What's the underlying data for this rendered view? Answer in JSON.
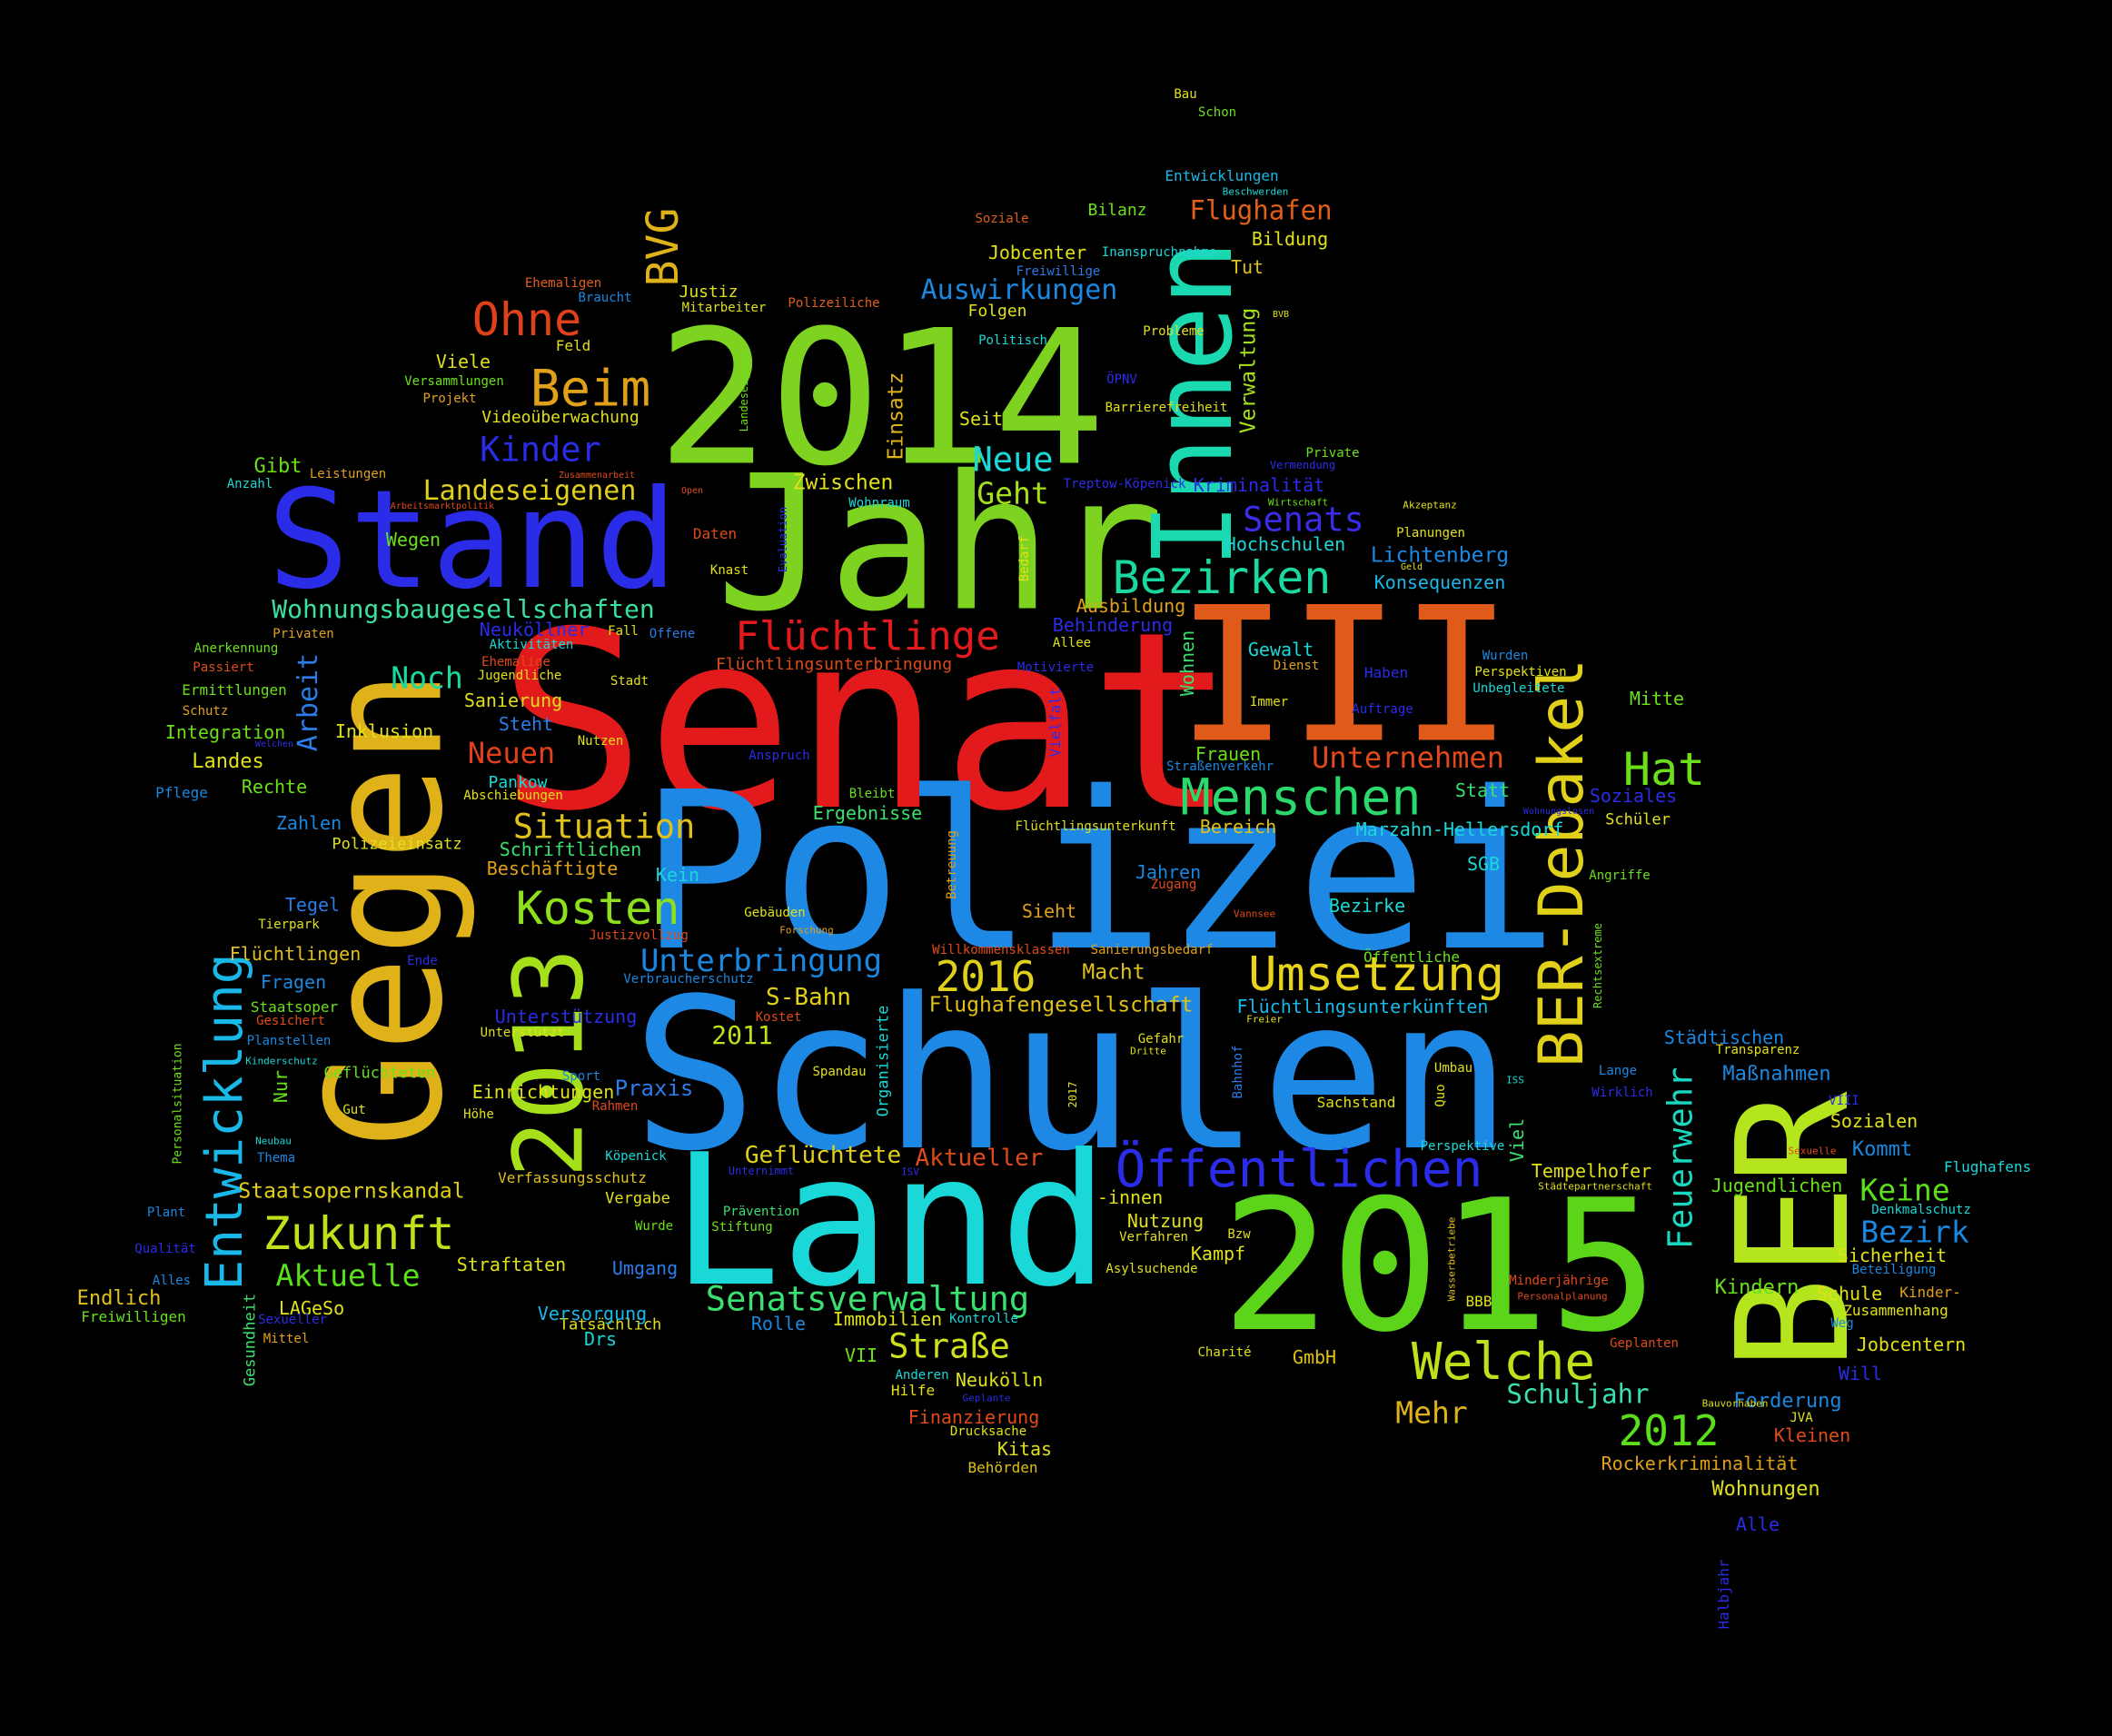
{
  "words": [
    {
      "text": "Senat",
      "color": "#e31a1c"
    },
    {
      "text": "Polizei",
      "color": "#1e88e5"
    },
    {
      "text": "Schulen",
      "color": "#1e88e5"
    },
    {
      "text": "Jahr",
      "color": "#7ed321"
    },
    {
      "text": "2014",
      "color": "#7ed321"
    },
    {
      "text": "2015",
      "color": "#5bd41a"
    },
    {
      "text": "Land",
      "color": "#1ad8d8"
    },
    {
      "text": "III",
      "color": "#e05a1a"
    },
    {
      "text": "Stand",
      "color": "#2b2ce8"
    },
    {
      "text": "Gegen",
      "color": "#e0b21a"
    },
    {
      "text": "BER",
      "color": "#b5e61d"
    },
    {
      "text": "Innen",
      "color": "#1ad8b0"
    },
    {
      "text": "2013",
      "color": "#a6e01a"
    },
    {
      "text": "BER-Debakel",
      "color": "#e0d01a"
    },
    {
      "text": "Entwicklung",
      "color": "#1ab8e8"
    },
    {
      "text": "Öffentlichen",
      "color": "#2b2ce8"
    },
    {
      "text": "Umsetzung",
      "color": "#e8d41a"
    },
    {
      "text": "Menschen",
      "color": "#2ad86b"
    },
    {
      "text": "Kosten",
      "color": "#8de01a"
    },
    {
      "text": "Zukunft",
      "color": "#c2e01a"
    },
    {
      "text": "Bezirken",
      "color": "#1ad8a0"
    },
    {
      "text": "Welche",
      "color": "#c2e01a"
    },
    {
      "text": "Flüchtlinge",
      "color": "#e31a1c"
    },
    {
      "text": "Ohne",
      "color": "#e0401a"
    },
    {
      "text": "Beim",
      "color": "#e0a01a"
    },
    {
      "text": "Hat",
      "color": "#6be01a"
    },
    {
      "text": "Senatsverwaltung",
      "color": "#3ae070"
    },
    {
      "text": "Situation",
      "color": "#e0c01a"
    },
    {
      "text": "Unterbringung",
      "color": "#1a88e0"
    },
    {
      "text": "2016",
      "color": "#e0d01a"
    },
    {
      "text": "2012",
      "color": "#5ae01a"
    },
    {
      "text": "Straße",
      "color": "#d0e01a"
    },
    {
      "text": "Feuerwehr",
      "color": "#1ad8c0"
    },
    {
      "text": "Kinder",
      "color": "#2b2ce8"
    },
    {
      "text": "Neue",
      "color": "#1ad8d8"
    },
    {
      "text": "Geht",
      "color": "#a6e01a"
    },
    {
      "text": "Senats",
      "color": "#3a2ce8"
    },
    {
      "text": "Unternehmen",
      "color": "#e04a1a"
    },
    {
      "text": "Aktuelle",
      "color": "#5ae01a"
    },
    {
      "text": "Noch",
      "color": "#1ad8a0"
    },
    {
      "text": "Neuen",
      "color": "#e0401a"
    },
    {
      "text": "Flughafen",
      "color": "#e0601a"
    },
    {
      "text": "Auswirkungen",
      "color": "#1a88e0"
    },
    {
      "text": "BVG",
      "color": "#e0b21a"
    },
    {
      "text": "Landeseigenen",
      "color": "#e0d01a"
    },
    {
      "text": "Wohnungsbaugesellschaften",
      "color": "#3ae0a0"
    },
    {
      "text": "Arbeit",
      "color": "#2b7ce8"
    },
    {
      "text": "Keine",
      "color": "#5ae01a"
    },
    {
      "text": "Bezirk",
      "color": "#1a88e0"
    },
    {
      "text": "Schuljahr",
      "color": "#3ae0b0"
    },
    {
      "text": "Mehr",
      "color": "#e0b21a"
    },
    {
      "text": "Geflüchtete",
      "color": "#e0d01a"
    },
    {
      "text": "Aktueller",
      "color": "#e04a1a"
    },
    {
      "text": "Staatsopernskandal",
      "color": "#e0d01a"
    },
    {
      "text": "S-Bahn",
      "color": "#e0d01a"
    },
    {
      "text": "2011",
      "color": "#c0e01a"
    },
    {
      "text": "Macht",
      "color": "#e0c01a"
    },
    {
      "text": "Flughafengesellschaft",
      "color": "#e0c01a"
    },
    {
      "text": "Einsatz",
      "color": "#e0b21a"
    },
    {
      "text": "Zwischen",
      "color": "#e0e01a"
    },
    {
      "text": "Verwaltung",
      "color": "#a6e01a"
    },
    {
      "text": "Lichtenberg",
      "color": "#1a88e0"
    },
    {
      "text": "Konsequenzen",
      "color": "#1ab8e8"
    },
    {
      "text": "Hochschulen",
      "color": "#1ad8d8"
    },
    {
      "text": "Ausbildung",
      "color": "#e0a01a"
    },
    {
      "text": "Behinderung",
      "color": "#2b2ce8"
    },
    {
      "text": "Flüchtlingsunterbringung",
      "color": "#e04a1a"
    },
    {
      "text": "Gewalt",
      "color": "#1ad8d8"
    },
    {
      "text": "Wohnen",
      "color": "#3ae070"
    },
    {
      "text": "Frauen",
      "color": "#6be01a"
    },
    {
      "text": "Ergebnisse",
      "color": "#3ae070"
    },
    {
      "text": "Bereich",
      "color": "#e0c01a"
    },
    {
      "text": "Marzahn-Hellersdorf",
      "color": "#1ad8d8"
    },
    {
      "text": "Jahren",
      "color": "#1a88e0"
    },
    {
      "text": "Bezirke",
      "color": "#1ad8d8"
    },
    {
      "text": "Sieht",
      "color": "#e0a01a"
    },
    {
      "text": "Kein",
      "color": "#1ad8d8"
    },
    {
      "text": "Beschäftigte",
      "color": "#e0a01a"
    },
    {
      "text": "Schriftlichen",
      "color": "#3ae070"
    },
    {
      "text": "Polizeieinsatz",
      "color": "#e0e01a"
    },
    {
      "text": "Zahlen",
      "color": "#1a88e0"
    },
    {
      "text": "Tegel",
      "color": "#2b7ce8"
    },
    {
      "text": "Tierpark",
      "color": "#e0e01a"
    },
    {
      "text": "Flüchtlingen",
      "color": "#e0c01a"
    },
    {
      "text": "Fragen",
      "color": "#1a88e0"
    },
    {
      "text": "Staatsoper",
      "color": "#6be01a"
    },
    {
      "text": "Gesichert",
      "color": "#e04a1a"
    },
    {
      "text": "Planstellen",
      "color": "#1a88e0"
    },
    {
      "text": "Geflüchteten",
      "color": "#6be01a"
    },
    {
      "text": "Einrichtungen",
      "color": "#e0e01a"
    },
    {
      "text": "Praxis",
      "color": "#2b7ce8"
    },
    {
      "text": "Unterstützung",
      "color": "#2b2ce8"
    },
    {
      "text": "Spandau",
      "color": "#e0e01a"
    },
    {
      "text": "Köpenick",
      "color": "#1ad8d8"
    },
    {
      "text": "Verfassungsschutz",
      "color": "#e0c01a"
    },
    {
      "text": "Vergabe",
      "color": "#e0e01a"
    },
    {
      "text": "Prävention",
      "color": "#3ae070"
    },
    {
      "text": "Stiftung",
      "color": "#6be01a"
    },
    {
      "text": "Tatsächlich",
      "color": "#e0e01a"
    },
    {
      "text": "Umgang",
      "color": "#2b7ce8"
    },
    {
      "text": "Straftaten",
      "color": "#e0e01a"
    },
    {
      "text": "Versorgung",
      "color": "#1ab8e8"
    },
    {
      "text": "Drs",
      "color": "#1ad8d8"
    },
    {
      "text": "Rolle",
      "color": "#1a88e0"
    },
    {
      "text": "Immobilien",
      "color": "#e0e01a"
    },
    {
      "text": "Kontrolle",
      "color": "#1ad8d8"
    },
    {
      "text": "VII",
      "color": "#6be01a"
    },
    {
      "text": "Anderen",
      "color": "#1ad8d8"
    },
    {
      "text": "Hilfe",
      "color": "#e0e01a"
    },
    {
      "text": "Neukölln",
      "color": "#e0e01a"
    },
    {
      "text": "Finanzierung",
      "color": "#e04a1a"
    },
    {
      "text": "Drucksache",
      "color": "#e0e01a"
    },
    {
      "text": "Kitas",
      "color": "#e0e01a"
    },
    {
      "text": "Behörden",
      "color": "#e0c01a"
    },
    {
      "text": "LAGeSo",
      "color": "#e0e01a"
    },
    {
      "text": "Endlich",
      "color": "#e0c01a"
    },
    {
      "text": "Freiwilligen",
      "color": "#6be01a"
    },
    {
      "text": "Mittel",
      "color": "#e0a01a"
    },
    {
      "text": "Sexueller",
      "color": "#2b2ce8"
    },
    {
      "text": "Gesundheit",
      "color": "#3ae070"
    },
    {
      "text": "Alles",
      "color": "#1a88e0"
    },
    {
      "text": "Qualität",
      "color": "#2b2ce8"
    },
    {
      "text": "Plant",
      "color": "#1a88e0"
    },
    {
      "text": "Personalsituation",
      "color": "#6be01a"
    },
    {
      "text": "Thema",
      "color": "#1a88e0"
    },
    {
      "text": "Neubau",
      "color": "#1ad8d8"
    },
    {
      "text": "Höhe",
      "color": "#e0e01a"
    },
    {
      "text": "Gut",
      "color": "#e0e01a"
    },
    {
      "text": "Nur",
      "color": "#6be01a"
    },
    {
      "text": "Kinderschutz",
      "color": "#1ad8d8"
    },
    {
      "text": "Rahmen",
      "color": "#e04a1a"
    },
    {
      "text": "Sport",
      "color": "#1a88e0"
    },
    {
      "text": "Unterstützt",
      "color": "#e0e01a"
    },
    {
      "text": "Kostet",
      "color": "#e04a1a"
    },
    {
      "text": "Verbraucherschutz",
      "color": "#1a88e0"
    },
    {
      "text": "Justizvollzug",
      "color": "#e04a1a"
    },
    {
      "text": "Forschung",
      "color": "#e0a01a"
    },
    {
      "text": "Gebäuden",
      "color": "#e0e01a"
    },
    {
      "text": "Organisierte",
      "color": "#1ad8d8"
    },
    {
      "text": "Betreuung",
      "color": "#e0a01a"
    },
    {
      "text": "Zugang",
      "color": "#e04a1a"
    },
    {
      "text": "Willkommensklassen",
      "color": "#e04a1a"
    },
    {
      "text": "Sanierungsbedarf",
      "color": "#e0a01a"
    },
    {
      "text": "Vannsee",
      "color": "#e04a1a"
    },
    {
      "text": "Öffentliche",
      "color": "#6be01a"
    },
    {
      "text": "Flüchtlingsunterkünften",
      "color": "#1ab8e8"
    },
    {
      "text": "Freier",
      "color": "#e0e01a"
    },
    {
      "text": "Gefahr",
      "color": "#e0e01a"
    },
    {
      "text": "Dritte",
      "color": "#e0e01a"
    },
    {
      "text": "Bahnhof",
      "color": "#2b7ce8"
    },
    {
      "text": "2017",
      "color": "#e0e01a"
    },
    {
      "text": "Umbau",
      "color": "#e0e01a"
    },
    {
      "text": "Quo",
      "color": "#e0e01a"
    },
    {
      "text": "Sachstand",
      "color": "#e0e01a"
    },
    {
      "text": "ISS",
      "color": "#1ad8d8"
    },
    {
      "text": "Viel",
      "color": "#3ae070"
    },
    {
      "text": "Perspektive",
      "color": "#1ad8d8"
    },
    {
      "text": "Tempelhofer",
      "color": "#e0e01a"
    },
    {
      "text": "Städtepartnerschaft",
      "color": "#e0e01a"
    },
    {
      "text": "-innen",
      "color": "#e0e01a"
    },
    {
      "text": "Nutzung",
      "color": "#e0e01a"
    },
    {
      "text": "Verfahren",
      "color": "#e0e01a"
    },
    {
      "text": "Kampf",
      "color": "#e0e01a"
    },
    {
      "text": "Bzw",
      "color": "#e0e01a"
    },
    {
      "text": "Asylsuchende",
      "color": "#e0e01a"
    },
    {
      "text": "Wasserbetriebe",
      "color": "#e0c01a"
    },
    {
      "text": "BBB",
      "color": "#e0e01a"
    },
    {
      "text": "Charité",
      "color": "#e0e01a"
    },
    {
      "text": "GmbH",
      "color": "#e0c01a"
    },
    {
      "text": "Minderjährige",
      "color": "#e04a1a"
    },
    {
      "text": "Personalplanung",
      "color": "#e04a1a"
    },
    {
      "text": "Kindern",
      "color": "#6be01a"
    },
    {
      "text": "Schule",
      "color": "#e0e01a"
    },
    {
      "text": "Kinder-",
      "color": "#e0a01a"
    },
    {
      "text": "Zusammenhang",
      "color": "#e0e01a"
    },
    {
      "text": "Beteiligung",
      "color": "#1a88e0"
    },
    {
      "text": "Denkmalschutz",
      "color": "#1ad8d8"
    },
    {
      "text": "Sicherheit",
      "color": "#e0e01a"
    },
    {
      "text": "Weg",
      "color": "#1a88e0"
    },
    {
      "text": "Jobcentern",
      "color": "#e0e01a"
    },
    {
      "text": "Will",
      "color": "#2b2ce8"
    },
    {
      "text": "Geplanten",
      "color": "#e04a1a"
    },
    {
      "text": "Forderung",
      "color": "#1a88e0"
    },
    {
      "text": "Bauvorhaben",
      "color": "#e0e01a"
    },
    {
      "text": "JVA",
      "color": "#e0e01a"
    },
    {
      "text": "Kleinen",
      "color": "#e04a1a"
    },
    {
      "text": "Rockerkriminalität",
      "color": "#e0a01a"
    },
    {
      "text": "Wohnungen",
      "color": "#e0e01a"
    },
    {
      "text": "Alle",
      "color": "#2b2ce8"
    },
    {
      "text": "Halbjahr",
      "color": "#2b2ce8"
    },
    {
      "text": "Jugendlichen",
      "color": "#6be01a"
    },
    {
      "text": "Flughafens",
      "color": "#1ad8d8"
    },
    {
      "text": "Sexuelle",
      "color": "#e04a1a"
    },
    {
      "text": "Kommt",
      "color": "#1a88e0"
    },
    {
      "text": "Sozialen",
      "color": "#e0e01a"
    },
    {
      "text": "VIII",
      "color": "#2b2ce8"
    },
    {
      "text": "Maßnahmen",
      "color": "#1a88e0"
    },
    {
      "text": "Lange",
      "color": "#1a88e0"
    },
    {
      "text": "Wirklich",
      "color": "#2b2ce8"
    },
    {
      "text": "Städtischen",
      "color": "#1a88e0"
    },
    {
      "text": "Transparenz",
      "color": "#e0e01a"
    },
    {
      "text": "Rechtsextreme",
      "color": "#6be01a"
    },
    {
      "text": "Angriffe",
      "color": "#6be01a"
    },
    {
      "text": "Schüler",
      "color": "#e0e01a"
    },
    {
      "text": "Soziales",
      "color": "#2b2ce8"
    },
    {
      "text": "Wohnungslosen",
      "color": "#2b2ce8"
    },
    {
      "text": "Statt",
      "color": "#3ae070"
    },
    {
      "text": "SGB",
      "color": "#1ad8d8"
    },
    {
      "text": "Mitte",
      "color": "#6be01a"
    },
    {
      "text": "Unbegleitete",
      "color": "#1ad8d8"
    },
    {
      "text": "Perspektiven",
      "color": "#e0e01a"
    },
    {
      "text": "Wurden",
      "color": "#1a88e0"
    },
    {
      "text": "Auftrage",
      "color": "#2b2ce8"
    },
    {
      "text": "Haben",
      "color": "#2b2ce8"
    },
    {
      "text": "Immer",
      "color": "#e0e01a"
    },
    {
      "text": "Dienst",
      "color": "#e0a01a"
    },
    {
      "text": "Geld",
      "color": "#e0e01a"
    },
    {
      "text": "Planungen",
      "color": "#e0e01a"
    },
    {
      "text": "Akzeptanz",
      "color": "#e0e01a"
    },
    {
      "text": "Wirtschaft",
      "color": "#6be01a"
    },
    {
      "text": "Vermendung",
      "color": "#2b2ce8"
    },
    {
      "text": "Private",
      "color": "#6be01a"
    },
    {
      "text": "Kriminalität",
      "color": "#2b2ce8"
    },
    {
      "text": "Treptow-Köpenick",
      "color": "#2b2ce8"
    },
    {
      "text": "Barrierefreiheit",
      "color": "#e0e01a"
    },
    {
      "text": "ÖPNV",
      "color": "#2b2ce8"
    },
    {
      "text": "Probleme",
      "color": "#e0e01a"
    },
    {
      "text": "Politisch",
      "color": "#1ad8d8"
    },
    {
      "text": "BVB",
      "color": "#e0e01a"
    },
    {
      "text": "Tut",
      "color": "#e0c01a"
    },
    {
      "text": "Bildung",
      "color": "#e0e01a"
    },
    {
      "text": "Beschwerden",
      "color": "#1ad8d8"
    },
    {
      "text": "Entwicklungen",
      "color": "#1ab8e8"
    },
    {
      "text": "Bilanz",
      "color": "#6be01a"
    },
    {
      "text": "Jobcenter",
      "color": "#e0e01a"
    },
    {
      "text": "Inanspruchnahme",
      "color": "#1ad8d8"
    },
    {
      "text": "Freiwillige",
      "color": "#2b7ce8"
    },
    {
      "text": "Soziale",
      "color": "#e0601a"
    },
    {
      "text": "Folgen",
      "color": "#e0e01a"
    },
    {
      "text": "Seit",
      "color": "#e0e01a"
    },
    {
      "text": "Bau",
      "color": "#e0e01a"
    },
    {
      "text": "Schon",
      "color": "#6be01a"
    },
    {
      "text": "Justiz",
      "color": "#e0e01a"
    },
    {
      "text": "Mitarbeiter",
      "color": "#e0e01a"
    },
    {
      "text": "Polizeiliche",
      "color": "#e0601a"
    },
    {
      "text": "Ehemaligen",
      "color": "#e0601a"
    },
    {
      "text": "Braucht",
      "color": "#1a88e0"
    },
    {
      "text": "Feld",
      "color": "#e0e01a"
    },
    {
      "text": "Viele",
      "color": "#e0e01a"
    },
    {
      "text": "Versammlungen",
      "color": "#6be01a"
    },
    {
      "text": "Projekt",
      "color": "#e0a01a"
    },
    {
      "text": "Videoüberwachung",
      "color": "#e0e01a"
    },
    {
      "text": "Landeseigene",
      "color": "#6be01a"
    },
    {
      "text": "Gibt",
      "color": "#6be01a"
    },
    {
      "text": "Anzahl",
      "color": "#1ad8d8"
    },
    {
      "text": "Leistungen",
      "color": "#e0a01a"
    },
    {
      "text": "Arbeitsmarktpolitik",
      "color": "#e04a1a"
    },
    {
      "text": "Zusammenarbeit",
      "color": "#e04a1a"
    },
    {
      "text": "Open",
      "color": "#e04a1a"
    },
    {
      "text": "Wegen",
      "color": "#6be01a"
    },
    {
      "text": "Daten",
      "color": "#e04a1a"
    },
    {
      "text": "Knast",
      "color": "#e0e01a"
    },
    {
      "text": "Evaluation",
      "color": "#2b2ce8"
    },
    {
      "text": "Wohnraum",
      "color": "#1ad8d8"
    },
    {
      "text": "Bedarf",
      "color": "#e0e01a"
    },
    {
      "text": "Vielfalt",
      "color": "#2b2ce8"
    },
    {
      "text": "Motivierte",
      "color": "#2b2ce8"
    },
    {
      "text": "Allee",
      "color": "#e0e01a"
    },
    {
      "text": "Neuköllner",
      "color": "#2b2ce8"
    },
    {
      "text": "Aktivitäten",
      "color": "#1ad8d8"
    },
    {
      "text": "Ehemalige",
      "color": "#e04a1a"
    },
    {
      "text": "Jugendliche",
      "color": "#e0e01a"
    },
    {
      "text": "Fall",
      "color": "#e0e01a"
    },
    {
      "text": "Offene",
      "color": "#2b7ce8"
    },
    {
      "text": "Stadt",
      "color": "#e0e01a"
    },
    {
      "text": "Sanierung",
      "color": "#e0e01a"
    },
    {
      "text": "Steht",
      "color": "#2b7ce8"
    },
    {
      "text": "Nutzen",
      "color": "#e0e01a"
    },
    {
      "text": "Anspruch",
      "color": "#2b2ce8"
    },
    {
      "text": "Pankow",
      "color": "#1ad8d8"
    },
    {
      "text": "Abschiebungen",
      "color": "#e0e01a"
    },
    {
      "text": "Bleibt",
      "color": "#6be01a"
    },
    {
      "text": "Straßenverkehr",
      "color": "#1a88e0"
    },
    {
      "text": "Flüchtlingsunterkunft",
      "color": "#e0e01a"
    },
    {
      "text": "Privaten",
      "color": "#e0a01a"
    },
    {
      "text": "Anerkennung",
      "color": "#6be01a"
    },
    {
      "text": "Passiert",
      "color": "#e04a1a"
    },
    {
      "text": "Ermittlungen",
      "color": "#6be01a"
    },
    {
      "text": "Schutz",
      "color": "#e0a01a"
    },
    {
      "text": "Integration",
      "color": "#6be01a"
    },
    {
      "text": "Welchen",
      "color": "#2b2ce8"
    },
    {
      "text": "Inklusion",
      "color": "#e0e01a"
    },
    {
      "text": "Landes",
      "color": "#e0e01a"
    },
    {
      "text": "Rechte",
      "color": "#6be01a"
    },
    {
      "text": "Pflege",
      "color": "#1a88e0"
    },
    {
      "text": "Ende",
      "color": "#2b2ce8"
    },
    {
      "text": "Wurde",
      "color": "#6be01a"
    },
    {
      "text": "Unternimmt",
      "color": "#2b2ce8"
    },
    {
      "text": "ISV",
      "color": "#2b2ce8"
    },
    {
      "text": "Geplante",
      "color": "#2b2ce8"
    }
  ]
}
